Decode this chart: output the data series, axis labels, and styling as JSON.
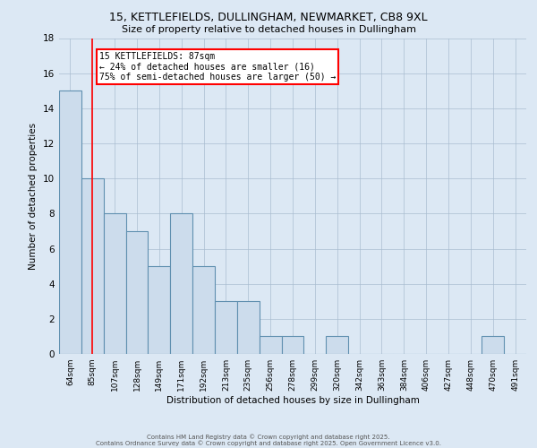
{
  "title1": "15, KETTLEFIELDS, DULLINGHAM, NEWMARKET, CB8 9XL",
  "title2": "Size of property relative to detached houses in Dullingham",
  "xlabel": "Distribution of detached houses by size in Dullingham",
  "ylabel": "Number of detached properties",
  "bar_labels": [
    "64sqm",
    "85sqm",
    "107sqm",
    "128sqm",
    "149sqm",
    "171sqm",
    "192sqm",
    "213sqm",
    "235sqm",
    "256sqm",
    "278sqm",
    "299sqm",
    "320sqm",
    "342sqm",
    "363sqm",
    "384sqm",
    "406sqm",
    "427sqm",
    "448sqm",
    "470sqm",
    "491sqm"
  ],
  "bar_values": [
    15,
    10,
    8,
    7,
    5,
    8,
    5,
    3,
    3,
    1,
    1,
    0,
    1,
    0,
    0,
    0,
    0,
    0,
    0,
    1,
    0
  ],
  "bar_color": "#ccdcec",
  "bar_edge_color": "#6090b0",
  "background_color": "#dce8f4",
  "red_line_x": 1,
  "annotation_text": "15 KETTLEFIELDS: 87sqm\n← 24% of detached houses are smaller (16)\n75% of semi-detached houses are larger (50) →",
  "annotation_box_color": "white",
  "annotation_box_edge": "red",
  "ylim": [
    0,
    18
  ],
  "yticks": [
    0,
    2,
    4,
    6,
    8,
    10,
    12,
    14,
    16,
    18
  ],
  "footer1": "Contains HM Land Registry data © Crown copyright and database right 2025.",
  "footer2": "Contains Ordnance Survey data © Crown copyright and database right 2025. Open Government Licence v3.0."
}
